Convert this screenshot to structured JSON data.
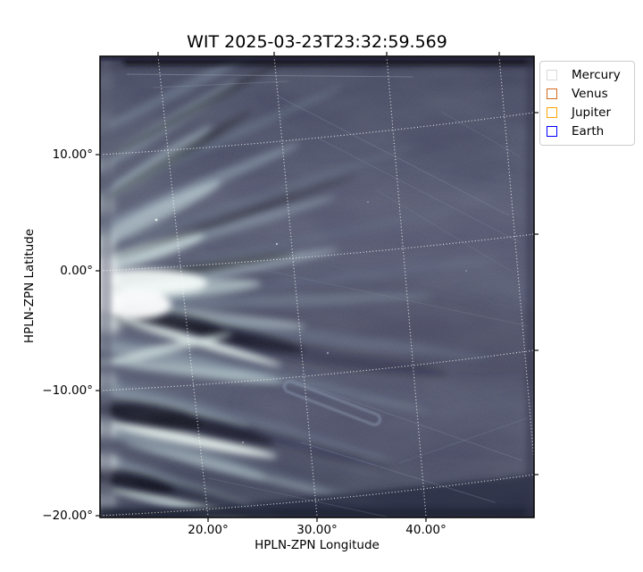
{
  "figure": {
    "title": "WIT 2025-03-23T23:32:59.569"
  },
  "axes": {
    "xlabel": "HPLN-ZPN Longitude",
    "ylabel": "HPLN-ZPN Latitude",
    "x_ticks": [
      {
        "label": "20.00°",
        "x": 233
      },
      {
        "label": "30.00°",
        "x": 355
      },
      {
        "label": "40.00°",
        "x": 477
      }
    ],
    "y_ticks": [
      {
        "label": "10.00°",
        "y": 173
      },
      {
        "label": "0.00°",
        "y": 303
      },
      {
        "label": "−10.00°",
        "y": 437
      },
      {
        "label": "−20.00°",
        "y": 577
      }
    ]
  },
  "legend": {
    "items": [
      {
        "label": "Mercury",
        "edge_color": "#d9d9d9",
        "face_color": "#ffffff"
      },
      {
        "label": "Venus",
        "edge_color": "#d2691e",
        "face_color": "#ffffff"
      },
      {
        "label": "Jupiter",
        "edge_color": "#ffa500",
        "face_color": "#ffffff"
      },
      {
        "label": "Earth",
        "edge_color": "#0000ff",
        "face_color": "#ffffff"
      }
    ]
  },
  "chart_data": {
    "type": "heatmap",
    "title": "WIT 2025-03-23T23:32:59.569",
    "xlabel": "HPLN-ZPN Longitude",
    "ylabel": "HPLN-ZPN Latitude",
    "x_tick_values_deg": [
      20,
      30,
      40
    ],
    "y_tick_values_deg": [
      10,
      0,
      -10,
      -20
    ],
    "xlim_deg_approx": [
      11,
      50
    ],
    "ylim_deg_approx": [
      -20,
      18.5
    ],
    "grid": "white dotted curved graticule (ZPN projection); longitude lines tilt left toward top, latitude lines rise toward right",
    "legend_position": "upper right, outside axes",
    "legend_entries": [
      "Mercury",
      "Venus",
      "Jupiter",
      "Earth"
    ],
    "image_description": "dark slate-blue white-light heliospheric image; bright solar-wind streamers fan out from the left (sunward) edge around 0° latitude with near-black dark lanes between them; brightest core at left edge near 0°; faint thin point-source trails and one elongated hairpin-shaped trail near 33°,-12°; right half nearly uniform dark"
  },
  "colors": {
    "background": "#ffffff",
    "text": "#000000",
    "frame": "#0b0b0b",
    "grid": "#ffffff",
    "image_base": "#464860",
    "image_bright": "#eef8f4",
    "image_dark": "#07080f"
  }
}
